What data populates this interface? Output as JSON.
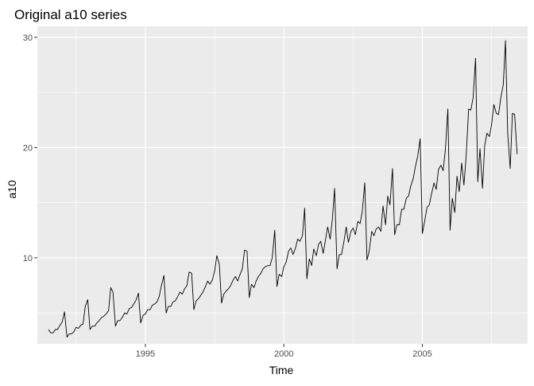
{
  "chart_data": {
    "type": "line",
    "title": "Original a10 series",
    "xlabel": "Time",
    "ylabel": "a10",
    "xlim": [
      1991.1,
      2008.8
    ],
    "ylim": [
      2.2,
      31.0
    ],
    "grid": true,
    "legend": "none",
    "x_ticks": [
      1995,
      2000,
      2005
    ],
    "x_tick_labels": [
      "1995",
      "2000",
      "2005"
    ],
    "y_ticks": [
      10,
      20,
      30
    ],
    "y_tick_labels": [
      "10",
      "20",
      "30"
    ],
    "x_minor_ticks": [
      1992.5,
      1997.5,
      2002.5,
      2007.5
    ],
    "y_minor_ticks": [
      5,
      15,
      25
    ],
    "series": [
      {
        "x": [
          1991.5,
          1991.58,
          1991.67,
          1991.75,
          1991.83,
          1991.92,
          1992.0,
          1992.08,
          1992.17,
          1992.25,
          1992.33,
          1992.42,
          1992.5,
          1992.58,
          1992.67,
          1992.75,
          1992.83,
          1992.92,
          1993.0,
          1993.08,
          1993.17,
          1993.25,
          1993.33,
          1993.42,
          1993.5,
          1993.58,
          1993.67,
          1993.75,
          1993.83,
          1993.92,
          1994.0,
          1994.08,
          1994.17,
          1994.25,
          1994.33,
          1994.42,
          1994.5,
          1994.58,
          1994.67,
          1994.75,
          1994.83,
          1994.92,
          1995.0,
          1995.08,
          1995.17,
          1995.25,
          1995.33,
          1995.42,
          1995.5,
          1995.58,
          1995.67,
          1995.75,
          1995.83,
          1995.92,
          1996.0,
          1996.08,
          1996.17,
          1996.25,
          1996.33,
          1996.42,
          1996.5,
          1996.58,
          1996.67,
          1996.75,
          1996.83,
          1996.92,
          1997.0,
          1997.08,
          1997.17,
          1997.25,
          1997.33,
          1997.42,
          1997.5,
          1997.58,
          1997.67,
          1997.75,
          1997.83,
          1997.92,
          1998.0,
          1998.08,
          1998.17,
          1998.25,
          1998.33,
          1998.42,
          1998.5,
          1998.58,
          1998.67,
          1998.75,
          1998.83,
          1998.92,
          1999.0,
          1999.08,
          1999.17,
          1999.25,
          1999.33,
          1999.42,
          1999.5,
          1999.58,
          1999.67,
          1999.75,
          1999.83,
          1999.92,
          2000.0,
          2000.08,
          2000.17,
          2000.25,
          2000.33,
          2000.42,
          2000.5,
          2000.58,
          2000.67,
          2000.75,
          2000.83,
          2000.92,
          2001.0,
          2001.08,
          2001.17,
          2001.25,
          2001.33,
          2001.42,
          2001.5,
          2001.58,
          2001.67,
          2001.75,
          2001.83,
          2001.92,
          2002.0,
          2002.08,
          2002.17,
          2002.25,
          2002.33,
          2002.42,
          2002.5,
          2002.58,
          2002.67,
          2002.75,
          2002.83,
          2002.92,
          2003.0,
          2003.08,
          2003.17,
          2003.25,
          2003.33,
          2003.42,
          2003.5,
          2003.58,
          2003.67,
          2003.75,
          2003.83,
          2003.92,
          2004.0,
          2004.08,
          2004.17,
          2004.25,
          2004.33,
          2004.42,
          2004.5,
          2004.58,
          2004.67,
          2004.75,
          2004.83,
          2004.92,
          2005.0,
          2005.08,
          2005.17,
          2005.25,
          2005.33,
          2005.42,
          2005.5,
          2005.58,
          2005.67,
          2005.75,
          2005.83,
          2005.92,
          2006.0,
          2006.08,
          2006.17,
          2006.25,
          2006.33,
          2006.42,
          2006.5,
          2006.58,
          2006.67,
          2006.75,
          2006.83,
          2006.92,
          2007.0,
          2007.08,
          2007.17,
          2007.25,
          2007.33,
          2007.42,
          2007.5,
          2007.58,
          2007.67,
          2007.75,
          2007.83,
          2007.92,
          2008.0,
          2008.08,
          2008.17,
          2008.25,
          2008.33,
          2008.42
        ],
        "values": [
          3.5,
          3.2,
          3.2,
          3.5,
          3.5,
          3.9,
          4.2,
          5.1,
          2.8,
          3.1,
          3.1,
          3.3,
          3.7,
          3.6,
          3.9,
          4.0,
          5.6,
          6.2,
          3.5,
          3.8,
          3.8,
          4.1,
          4.3,
          4.6,
          4.7,
          4.9,
          5.2,
          7.3,
          6.9,
          3.8,
          4.3,
          4.3,
          4.6,
          5.0,
          4.9,
          5.4,
          5.5,
          5.8,
          6.2,
          6.8,
          4.1,
          4.8,
          4.9,
          5.3,
          5.3,
          5.7,
          5.8,
          6.0,
          6.5,
          7.5,
          8.4,
          5.0,
          5.6,
          5.6,
          6.0,
          6.1,
          6.5,
          6.9,
          6.7,
          7.2,
          7.5,
          8.7,
          8.6,
          5.3,
          6.1,
          6.3,
          6.6,
          6.9,
          7.4,
          7.9,
          7.6,
          8.0,
          8.8,
          10.2,
          9.4,
          5.9,
          6.7,
          7.0,
          7.2,
          7.5,
          8.0,
          8.3,
          7.9,
          8.5,
          9.0,
          10.7,
          10.6,
          6.4,
          7.6,
          7.3,
          7.9,
          8.3,
          8.6,
          9.0,
          9.2,
          9.3,
          9.3,
          10.0,
          12.5,
          7.4,
          8.5,
          8.3,
          9.2,
          9.6,
          10.6,
          10.9,
          10.3,
          10.9,
          11.7,
          11.5,
          12.0,
          14.5,
          8.1,
          9.9,
          9.3,
          10.8,
          10.2,
          11.2,
          11.5,
          10.4,
          11.6,
          12.8,
          11.7,
          13.5,
          16.3,
          9.0,
          10.3,
          10.3,
          11.5,
          12.8,
          11.4,
          12.4,
          12.7,
          12.1,
          13.3,
          13.1,
          14.2,
          16.8,
          9.8,
          10.6,
          12.4,
          12.0,
          12.6,
          12.8,
          12.4,
          14.7,
          13.0,
          15.6,
          14.8,
          18.1,
          12.1,
          13.0,
          13.0,
          14.4,
          14.4,
          15.4,
          15.6,
          16.5,
          17.2,
          18.3,
          19.2,
          20.8,
          12.2,
          13.3,
          14.6,
          14.8,
          15.8,
          16.8,
          16.2,
          18.0,
          18.4,
          17.9,
          19.8,
          23.5,
          12.5,
          15.4,
          14.1,
          17.4,
          16.0,
          18.6,
          16.6,
          19.2,
          23.5,
          23.4,
          24.5,
          28.1,
          16.9,
          19.9,
          16.3,
          20.2,
          21.3,
          21.0,
          22.1,
          23.9,
          23.1,
          23.0,
          24.5,
          25.7,
          29.7,
          21.3,
          18.1,
          23.1,
          23.0,
          19.4
        ]
      }
    ]
  }
}
